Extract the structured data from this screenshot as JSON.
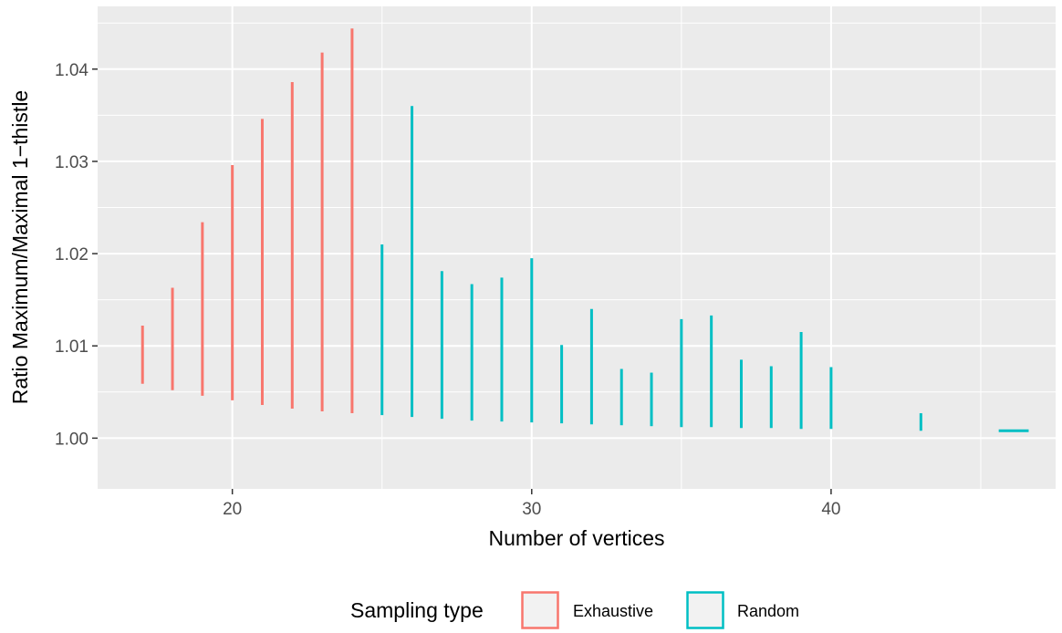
{
  "chart_data": {
    "type": "line",
    "subtype": "range-segments",
    "xlabel": "Number of vertices",
    "ylabel": "Ratio Maximum/Maximal 1−thistle",
    "xlim": [
      15.5,
      47.5
    ],
    "ylim": [
      0.9945,
      1.0468
    ],
    "x_ticks": [
      20,
      30,
      40
    ],
    "y_ticks": [
      1.0,
      1.01,
      1.02,
      1.03,
      1.04
    ],
    "x_tick_labels": [
      "20",
      "30",
      "40"
    ],
    "y_tick_labels": [
      "1.00",
      "1.01",
      "1.02",
      "1.03",
      "1.04"
    ],
    "grid": true,
    "legend_position": "bottom",
    "legend_title": "Sampling type",
    "series": [
      {
        "name": "Exhaustive",
        "color": "#F8766D",
        "points": [
          {
            "x": 17,
            "ymin": 1.0059,
            "ymax": 1.0122
          },
          {
            "x": 18,
            "ymin": 1.0052,
            "ymax": 1.0163
          },
          {
            "x": 19,
            "ymin": 1.0046,
            "ymax": 1.0234
          },
          {
            "x": 20,
            "ymin": 1.0041,
            "ymax": 1.0296
          },
          {
            "x": 21,
            "ymin": 1.0036,
            "ymax": 1.0346
          },
          {
            "x": 22,
            "ymin": 1.0032,
            "ymax": 1.0386
          },
          {
            "x": 23,
            "ymin": 1.0029,
            "ymax": 1.0418
          },
          {
            "x": 24,
            "ymin": 1.0027,
            "ymax": 1.0444
          }
        ]
      },
      {
        "name": "Random",
        "color": "#00BFC4",
        "points": [
          {
            "x": 25,
            "ymin": 1.0025,
            "ymax": 1.021
          },
          {
            "x": 26,
            "ymin": 1.0023,
            "ymax": 1.036
          },
          {
            "x": 27,
            "ymin": 1.0021,
            "ymax": 1.0181
          },
          {
            "x": 28,
            "ymin": 1.0019,
            "ymax": 1.0167
          },
          {
            "x": 29,
            "ymin": 1.0018,
            "ymax": 1.0174
          },
          {
            "x": 30,
            "ymin": 1.0017,
            "ymax": 1.0195
          },
          {
            "x": 31,
            "ymin": 1.0016,
            "ymax": 1.0101
          },
          {
            "x": 32,
            "ymin": 1.0015,
            "ymax": 1.014
          },
          {
            "x": 33,
            "ymin": 1.0014,
            "ymax": 1.0075
          },
          {
            "x": 34,
            "ymin": 1.0013,
            "ymax": 1.0071
          },
          {
            "x": 35,
            "ymin": 1.0012,
            "ymax": 1.0129
          },
          {
            "x": 36,
            "ymin": 1.0012,
            "ymax": 1.0133
          },
          {
            "x": 37,
            "ymin": 1.0011,
            "ymax": 1.0085
          },
          {
            "x": 38,
            "ymin": 1.0011,
            "ymax": 1.0078
          },
          {
            "x": 39,
            "ymin": 1.001,
            "ymax": 1.0115
          },
          {
            "x": 40,
            "ymin": 1.001,
            "ymax": 1.0077
          },
          {
            "x": 43,
            "ymin": 1.0008,
            "ymax": 1.0027
          },
          {
            "x": 45.6,
            "x_end": 46.6,
            "ymin": 1.0008,
            "ymax": 1.0008
          }
        ]
      }
    ]
  }
}
